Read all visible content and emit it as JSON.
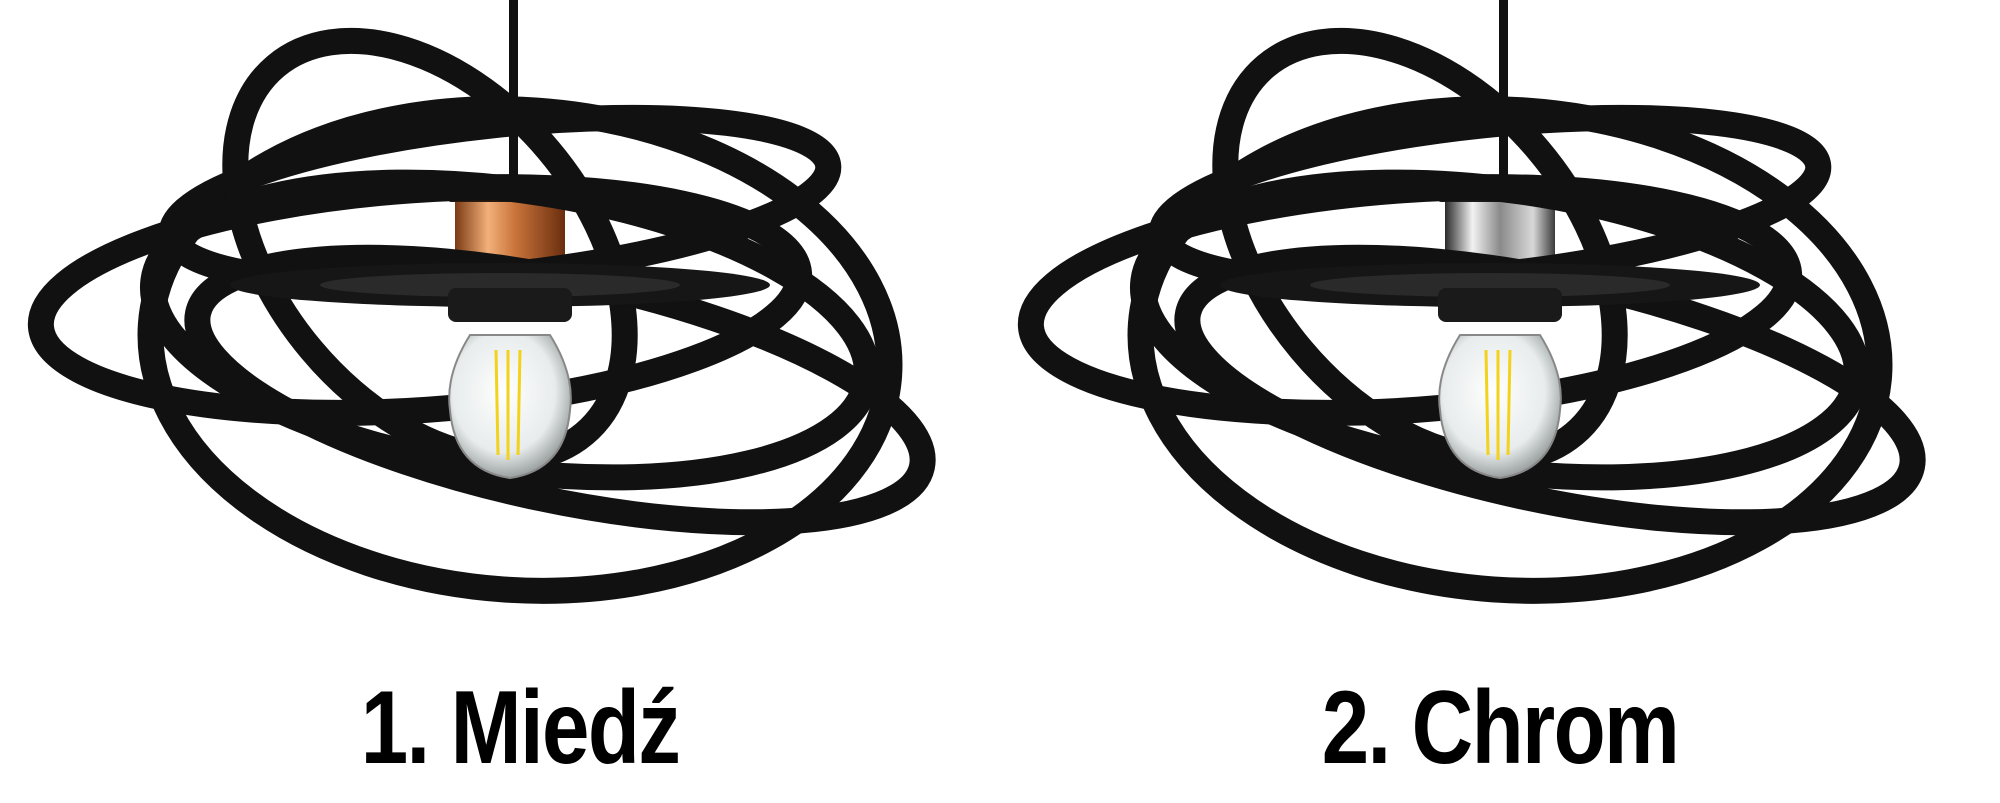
{
  "variants": [
    {
      "label": "1. Miedź",
      "socket_color": "#c8733a",
      "socket_highlight": "#f3b07a",
      "socket_shadow": "#7a3a14"
    },
    {
      "label": "2. Chrom",
      "socket_color": "#9a9a9a",
      "socket_highlight": "#f2f2f2",
      "socket_shadow": "#3a3a3a"
    }
  ],
  "colors": {
    "ring": "#111111",
    "background": "#ffffff",
    "filament": "#f2d21a"
  }
}
